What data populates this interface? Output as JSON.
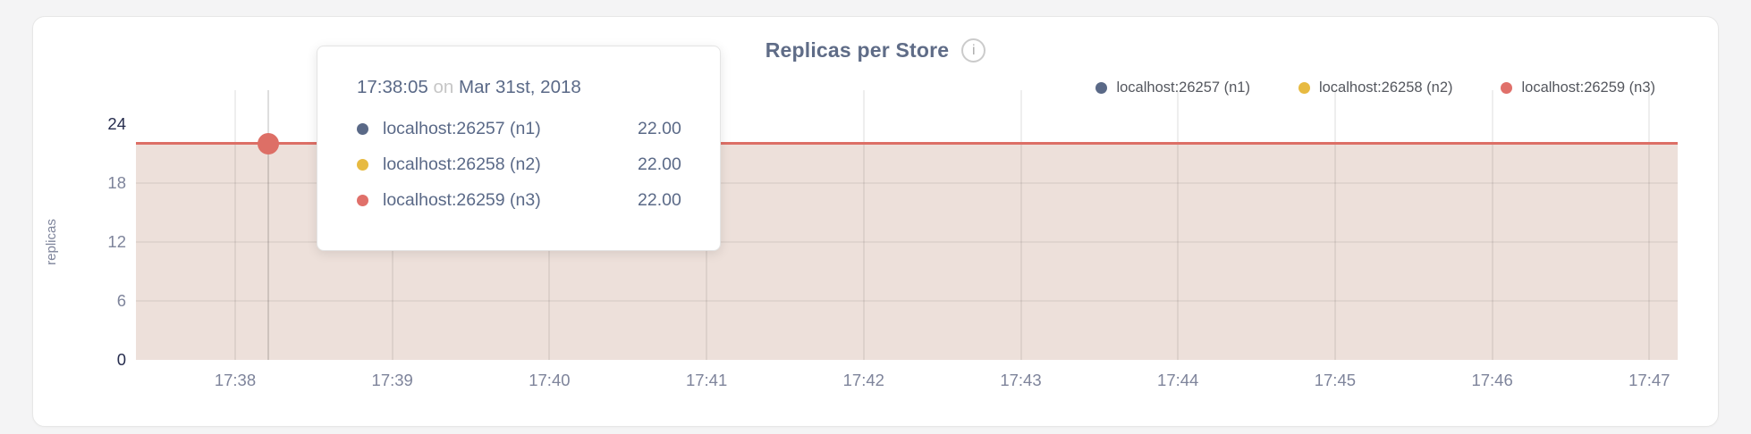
{
  "chart": {
    "title": "Replicas per Store",
    "info_glyph": "i",
    "ylabel": "replicas",
    "colors": {
      "line": "#dd6f66",
      "fill": "#ede0da",
      "hover_point": "#dd6f66"
    },
    "y_axis": {
      "ticks": [
        {
          "label": "24",
          "value": 24
        },
        {
          "label": "18",
          "value": 18
        },
        {
          "label": "12",
          "value": 12
        },
        {
          "label": "6",
          "value": 6
        },
        {
          "label": "0",
          "value": 0
        }
      ]
    },
    "x_axis": {
      "ticks": [
        "17:38",
        "17:39",
        "17:40",
        "17:41",
        "17:42",
        "17:43",
        "17:44",
        "17:45",
        "17:46",
        "17:47"
      ]
    }
  },
  "legend": {
    "items": [
      {
        "label": "localhost:26257 (n1)",
        "color": "#5a6987"
      },
      {
        "label": "localhost:26258 (n2)",
        "color": "#e7ba41"
      },
      {
        "label": "localhost:26259 (n3)",
        "color": "#e0706a"
      }
    ]
  },
  "tooltip": {
    "time": "17:38:05",
    "conjunction": "on",
    "date": "Mar 31st, 2018",
    "rows": [
      {
        "label": "localhost:26257 (n1)",
        "value": "22.00",
        "color": "#5a6987"
      },
      {
        "label": "localhost:26258 (n2)",
        "value": "22.00",
        "color": "#e7ba41"
      },
      {
        "label": "localhost:26259 (n3)",
        "value": "22.00",
        "color": "#e0706a"
      }
    ]
  },
  "chart_data": {
    "type": "area",
    "title": "Replicas per Store",
    "xlabel": "",
    "ylabel": "replicas",
    "x": [
      "17:38",
      "17:39",
      "17:40",
      "17:41",
      "17:42",
      "17:43",
      "17:44",
      "17:45",
      "17:46",
      "17:47"
    ],
    "series": [
      {
        "name": "localhost:26257 (n1)",
        "color": "#5a6987",
        "values": [
          22,
          22,
          22,
          22,
          22,
          22,
          22,
          22,
          22,
          22
        ]
      },
      {
        "name": "localhost:26258 (n2)",
        "color": "#e7ba41",
        "values": [
          22,
          22,
          22,
          22,
          22,
          22,
          22,
          22,
          22,
          22
        ]
      },
      {
        "name": "localhost:26259 (n3)",
        "color": "#e0706a",
        "values": [
          22,
          22,
          22,
          22,
          22,
          22,
          22,
          22,
          22,
          22
        ]
      }
    ],
    "ylim": [
      0,
      24
    ],
    "yticks": [
      0,
      6,
      12,
      18,
      24
    ],
    "grid": true,
    "legend_position": "top-right",
    "hover": {
      "time": "17:38:05",
      "date": "Mar 31st, 2018",
      "values": [
        22,
        22,
        22
      ]
    }
  }
}
